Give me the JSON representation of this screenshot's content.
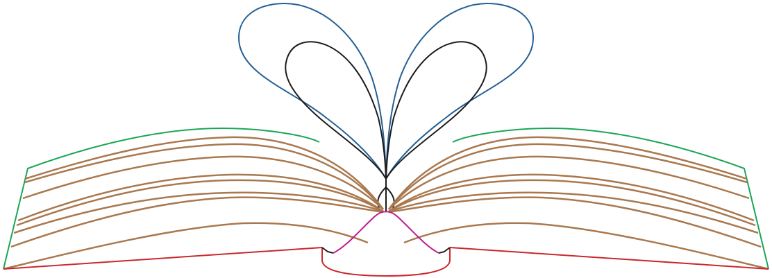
{
  "colors": {
    "background": "#ffffff",
    "cover_outline": "#1aa655",
    "pages": "#a9784e",
    "outer_loop": "#245f93",
    "inner_loop": "#1b1b1b",
    "base": "#c9282d",
    "spine_bump": "#c2188f",
    "center_lines": "#1b1b1b"
  },
  "illustration": {
    "subject": "open-book-with-heart-pages-icon"
  }
}
